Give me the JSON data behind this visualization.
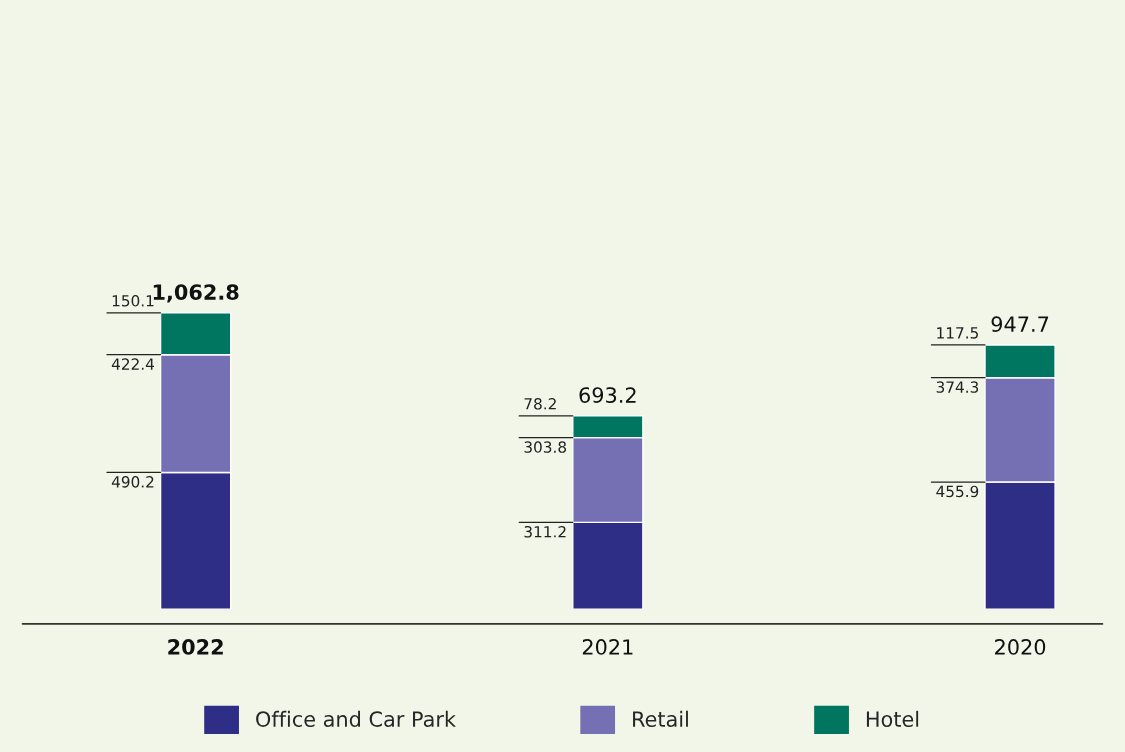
{
  "chart_data": {
    "type": "bar",
    "stacked": true,
    "categories": [
      "2022",
      "2021",
      "2020"
    ],
    "series": [
      {
        "name": "Office and Car Park",
        "color": "#2e2e87",
        "values": [
          490.2,
          311.2,
          455.9
        ]
      },
      {
        "name": "Retail",
        "color": "#7470b3",
        "values": [
          422.4,
          303.8,
          374.3
        ]
      },
      {
        "name": "Hotel",
        "color": "#007560",
        "values": [
          150.1,
          78.2,
          117.5
        ]
      }
    ],
    "data_labels": true,
    "totals": [
      "1,062.8",
      "693.2",
      "947.7"
    ],
    "legend": "bottom"
  }
}
